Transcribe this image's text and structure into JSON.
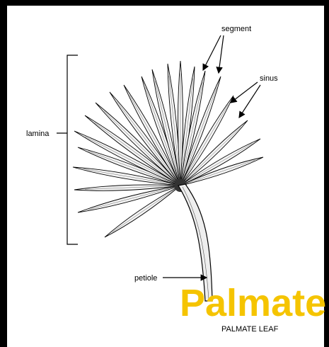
{
  "labels": {
    "segment": "segment",
    "sinus": "sinus",
    "lamina": "lamina",
    "petiole": "petiole"
  },
  "watermark": "Palmate",
  "caption": "PALMATE LEAF"
}
